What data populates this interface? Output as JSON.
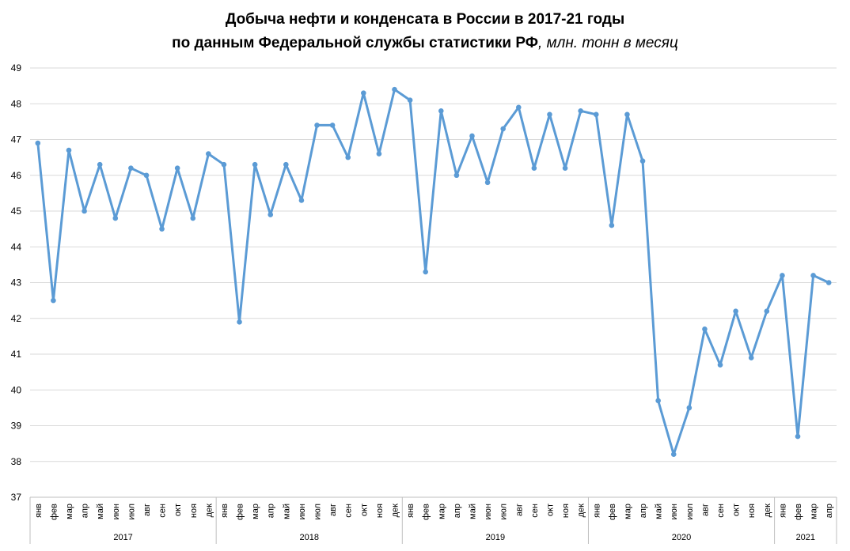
{
  "title": {
    "line1": "Добыча нефти и конденсата в России в 2017-21 годы",
    "line2_bold": "по данным Федеральной службы статистики РФ",
    "line2_italic": ", млн. тонн в месяц"
  },
  "chart_data": {
    "type": "line",
    "ylim": [
      37,
      49
    ],
    "yticks": [
      37,
      38,
      39,
      40,
      41,
      42,
      43,
      44,
      45,
      46,
      47,
      48,
      49
    ],
    "grid": true,
    "color": "#5b9bd5",
    "x_month_labels": [
      "янв",
      "фев",
      "мар",
      "апр",
      "май",
      "июн",
      "июл",
      "авг",
      "сен",
      "окт",
      "ноя",
      "дек",
      "янв",
      "фев",
      "мар",
      "апр",
      "май",
      "июн",
      "июл",
      "авг",
      "сен",
      "окт",
      "ноя",
      "дек",
      "янв",
      "фев",
      "мар",
      "апр",
      "май",
      "июн",
      "июл",
      "авг",
      "сен",
      "окт",
      "ноя",
      "дек",
      "янв",
      "фев",
      "мар",
      "апр",
      "май",
      "июн",
      "июл",
      "авг",
      "сен",
      "окт",
      "ноя",
      "дек",
      "янв",
      "фев",
      "мар",
      "апр"
    ],
    "year_groups": [
      {
        "year": "2017",
        "months": 12
      },
      {
        "year": "2018",
        "months": 12
      },
      {
        "year": "2019",
        "months": 12
      },
      {
        "year": "2020",
        "months": 12
      },
      {
        "year": "2021",
        "months": 4
      }
    ],
    "series": [
      {
        "values": [
          46.9,
          42.5,
          46.7,
          45.0,
          46.3,
          44.8,
          46.2,
          46.0,
          44.5,
          46.2,
          44.8,
          46.6,
          46.3,
          41.9,
          46.3,
          44.9,
          46.3,
          45.3,
          47.4,
          47.4,
          46.5,
          48.3,
          46.6,
          48.4,
          48.1,
          43.3,
          47.8,
          46.0,
          47.1,
          45.8,
          47.3,
          47.9,
          46.2,
          47.7,
          46.2,
          47.8,
          47.7,
          44.6,
          47.7,
          46.4,
          39.7,
          38.2,
          39.5,
          41.7,
          40.7,
          42.2,
          40.9,
          42.2,
          43.2,
          38.7,
          43.2,
          43.0
        ]
      }
    ]
  }
}
